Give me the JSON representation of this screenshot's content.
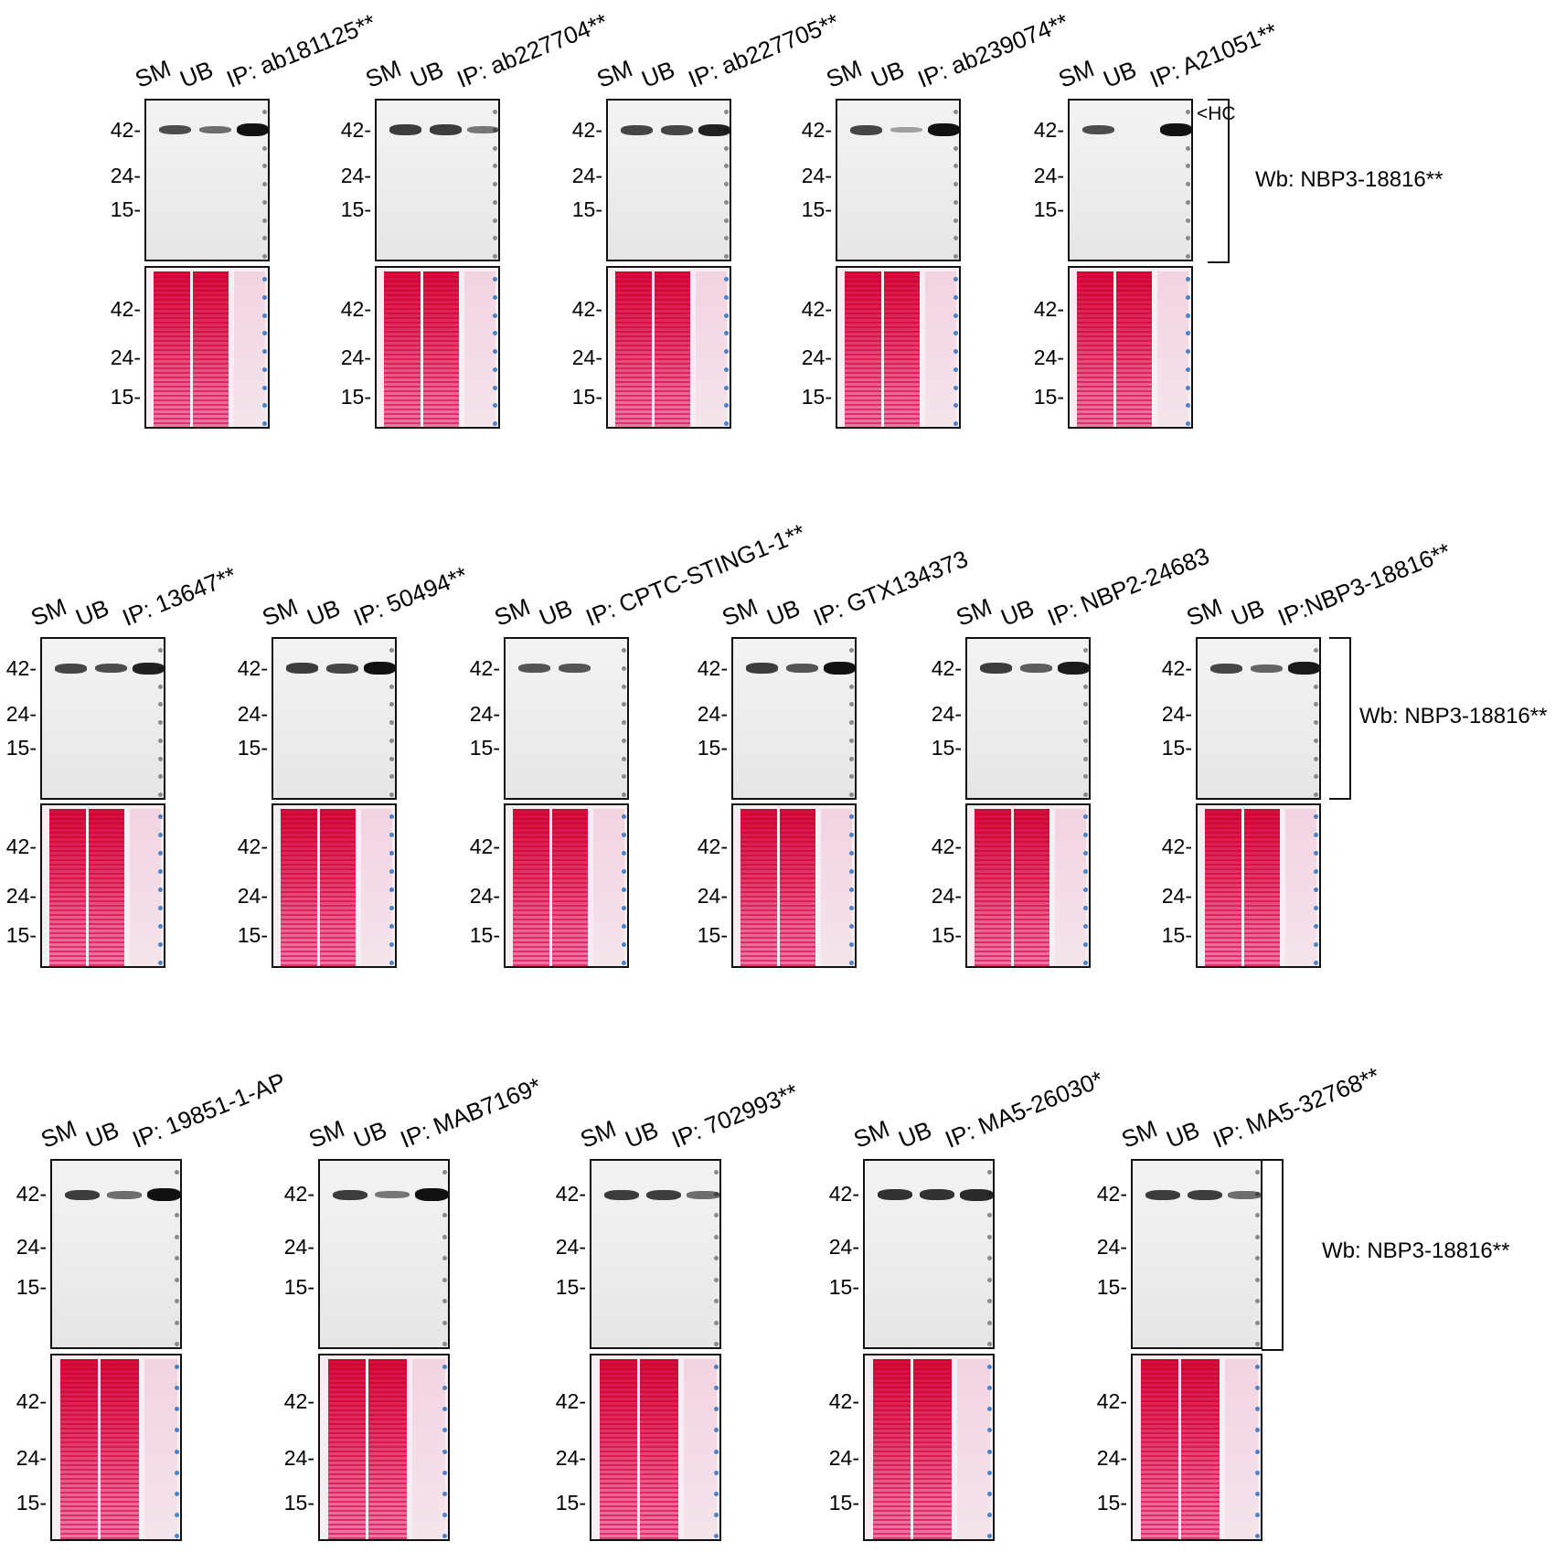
{
  "lane_labels": {
    "sm": "SM",
    "ub": "UB"
  },
  "mw_markers": [
    "42-",
    "24-",
    "15-"
  ],
  "wb_label": "Wb: NBP3-18816**",
  "hc_label": "<HC",
  "rows": [
    {
      "panels": [
        {
          "ip": "IP: ab181125**",
          "bands": [
            0.65,
            0.45,
            1.0
          ]
        },
        {
          "ip": "IP: ab227704**",
          "bands": [
            0.75,
            0.75,
            0.4
          ]
        },
        {
          "ip": "IP: ab227705**",
          "bands": [
            0.7,
            0.7,
            0.9
          ]
        },
        {
          "ip": "IP: ab239074**",
          "bands": [
            0.7,
            0.15,
            1.0
          ]
        },
        {
          "ip": "IP: A21051**",
          "bands": [
            0.65,
            0.0,
            1.0
          ]
        }
      ]
    },
    {
      "panels": [
        {
          "ip": "IP: 13647**",
          "bands": [
            0.7,
            0.65,
            0.9
          ]
        },
        {
          "ip": "IP: 50494**",
          "bands": [
            0.75,
            0.7,
            1.0
          ]
        },
        {
          "ip": "IP: CPTC-STING1-1**",
          "bands": [
            0.6,
            0.6,
            0.0
          ]
        },
        {
          "ip": "IP: GTX134373",
          "bands": [
            0.75,
            0.6,
            1.0
          ]
        },
        {
          "ip": "IP: NBP2-24683",
          "bands": [
            0.75,
            0.55,
            0.95
          ]
        },
        {
          "ip": "IP:NBP3-18816**",
          "bands": [
            0.7,
            0.5,
            0.95
          ]
        }
      ]
    },
    {
      "panels": [
        {
          "ip": "IP: 19851-1-AP",
          "bands": [
            0.75,
            0.45,
            1.0
          ]
        },
        {
          "ip": "IP: MAB7169*",
          "bands": [
            0.75,
            0.4,
            1.0
          ]
        },
        {
          "ip": "IP: 702993**",
          "bands": [
            0.75,
            0.75,
            0.45
          ]
        },
        {
          "ip": "IP: MA5-26030*",
          "bands": [
            0.8,
            0.8,
            0.85
          ]
        },
        {
          "ip": "IP: MA5-32768**",
          "bands": [
            0.75,
            0.75,
            0.45
          ]
        }
      ]
    }
  ]
}
